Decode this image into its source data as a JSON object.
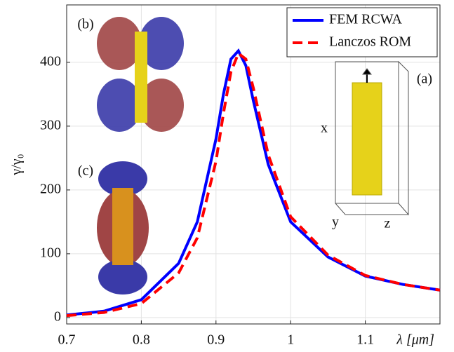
{
  "chart_data": {
    "type": "line",
    "x_label": "λ [μm]",
    "y_label": "γ/γ₀",
    "x": [
      0.7,
      0.75,
      0.8,
      0.85,
      0.875,
      0.9,
      0.91,
      0.92,
      0.93,
      0.94,
      0.95,
      0.97,
      1.0,
      1.05,
      1.1,
      1.15,
      1.2
    ],
    "series": [
      {
        "name": "FEM RCWA",
        "color": "#0000ff",
        "dash": "solid",
        "values": [
          4,
          10,
          28,
          85,
          150,
          280,
          350,
          405,
          418,
          395,
          340,
          240,
          150,
          95,
          65,
          52,
          43
        ]
      },
      {
        "name": "Lanczos ROM",
        "color": "#ff0000",
        "dash": "dashed",
        "values": [
          3,
          8,
          22,
          70,
          125,
          245,
          320,
          385,
          414,
          405,
          360,
          255,
          158,
          98,
          66,
          52,
          43
        ]
      }
    ],
    "xlim": [
      0.7,
      1.2
    ],
    "ylim": [
      -10,
      490
    ],
    "xticks": [
      0.7,
      0.8,
      0.9,
      1,
      1.1
    ],
    "yticks": [
      0,
      100,
      200,
      300,
      400
    ],
    "grid": true,
    "legend": "upper right",
    "annotations": [
      "(a)",
      "(b)",
      "(c)",
      "x",
      "y",
      "z"
    ]
  }
}
